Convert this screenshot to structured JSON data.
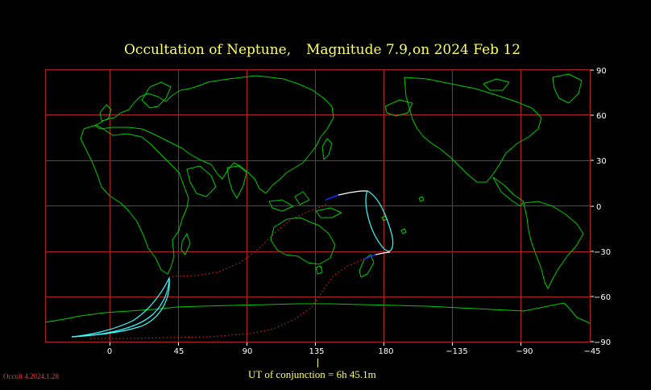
{
  "title": {
    "part1": "Occultation  of  Neptune,",
    "part2": "Magnitude 7.9,",
    "part3": "on  2024 Feb 12"
  },
  "x_ticks": [
    "0",
    "45",
    "90",
    "135",
    "180",
    "−135",
    "−90",
    "−45"
  ],
  "y_ticks": [
    "90",
    "60",
    "30",
    "0",
    "−30",
    "−60",
    "−90"
  ],
  "conjunction_label": "UT of conjunction =  6h 45.1m",
  "version": "Occult 4.2024.1.28",
  "colors": {
    "grid": "#b02020",
    "coast": "#00cc00",
    "limit": "#33ffff",
    "path_night": "#ffffff",
    "path_twilight": "#1a2bff",
    "dotted": "#ff2222",
    "title": "#ffff66"
  }
}
